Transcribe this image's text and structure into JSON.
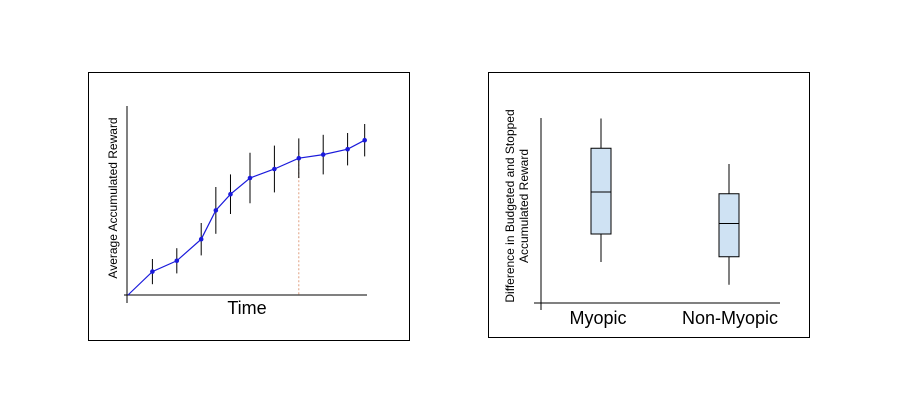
{
  "chart_data": [
    {
      "type": "line",
      "title": "",
      "xlabel": "Time",
      "ylabel": "Average Accumulated Reward",
      "x": [
        0,
        1,
        2,
        3,
        3.6,
        4.2,
        5,
        6,
        7,
        8,
        9,
        9.7
      ],
      "values": [
        0,
        0.13,
        0.19,
        0.31,
        0.47,
        0.56,
        0.65,
        0.7,
        0.76,
        0.78,
        0.81,
        0.86
      ],
      "error": [
        0,
        0.07,
        0.07,
        0.09,
        0.13,
        0.11,
        0.14,
        0.13,
        0.11,
        0.11,
        0.09,
        0.09
      ],
      "xlim": [
        0,
        10
      ],
      "ylim": [
        0,
        1
      ],
      "cutoff_x": 7,
      "colors": {
        "line": "#1a1adb",
        "cutoff": "#e0a080"
      },
      "grid": false
    },
    {
      "type": "box",
      "title": "",
      "xlabel": "",
      "ylabel_lines": [
        "Difference in Budgeted and Stopped",
        "Accumulated Reward"
      ],
      "categories": [
        "Myopic",
        "Non-Myopic"
      ],
      "boxes": [
        {
          "min": 0.16,
          "q1": 0.32,
          "median": 0.56,
          "q3": 0.81,
          "max": 0.98
        },
        {
          "min": 0.03,
          "q1": 0.19,
          "median": 0.38,
          "q3": 0.55,
          "max": 0.72
        }
      ],
      "ylim": [
        0,
        1
      ],
      "colors": {
        "box_fill": "#cfe2f3",
        "box_stroke": "#000000"
      },
      "grid": false
    }
  ]
}
